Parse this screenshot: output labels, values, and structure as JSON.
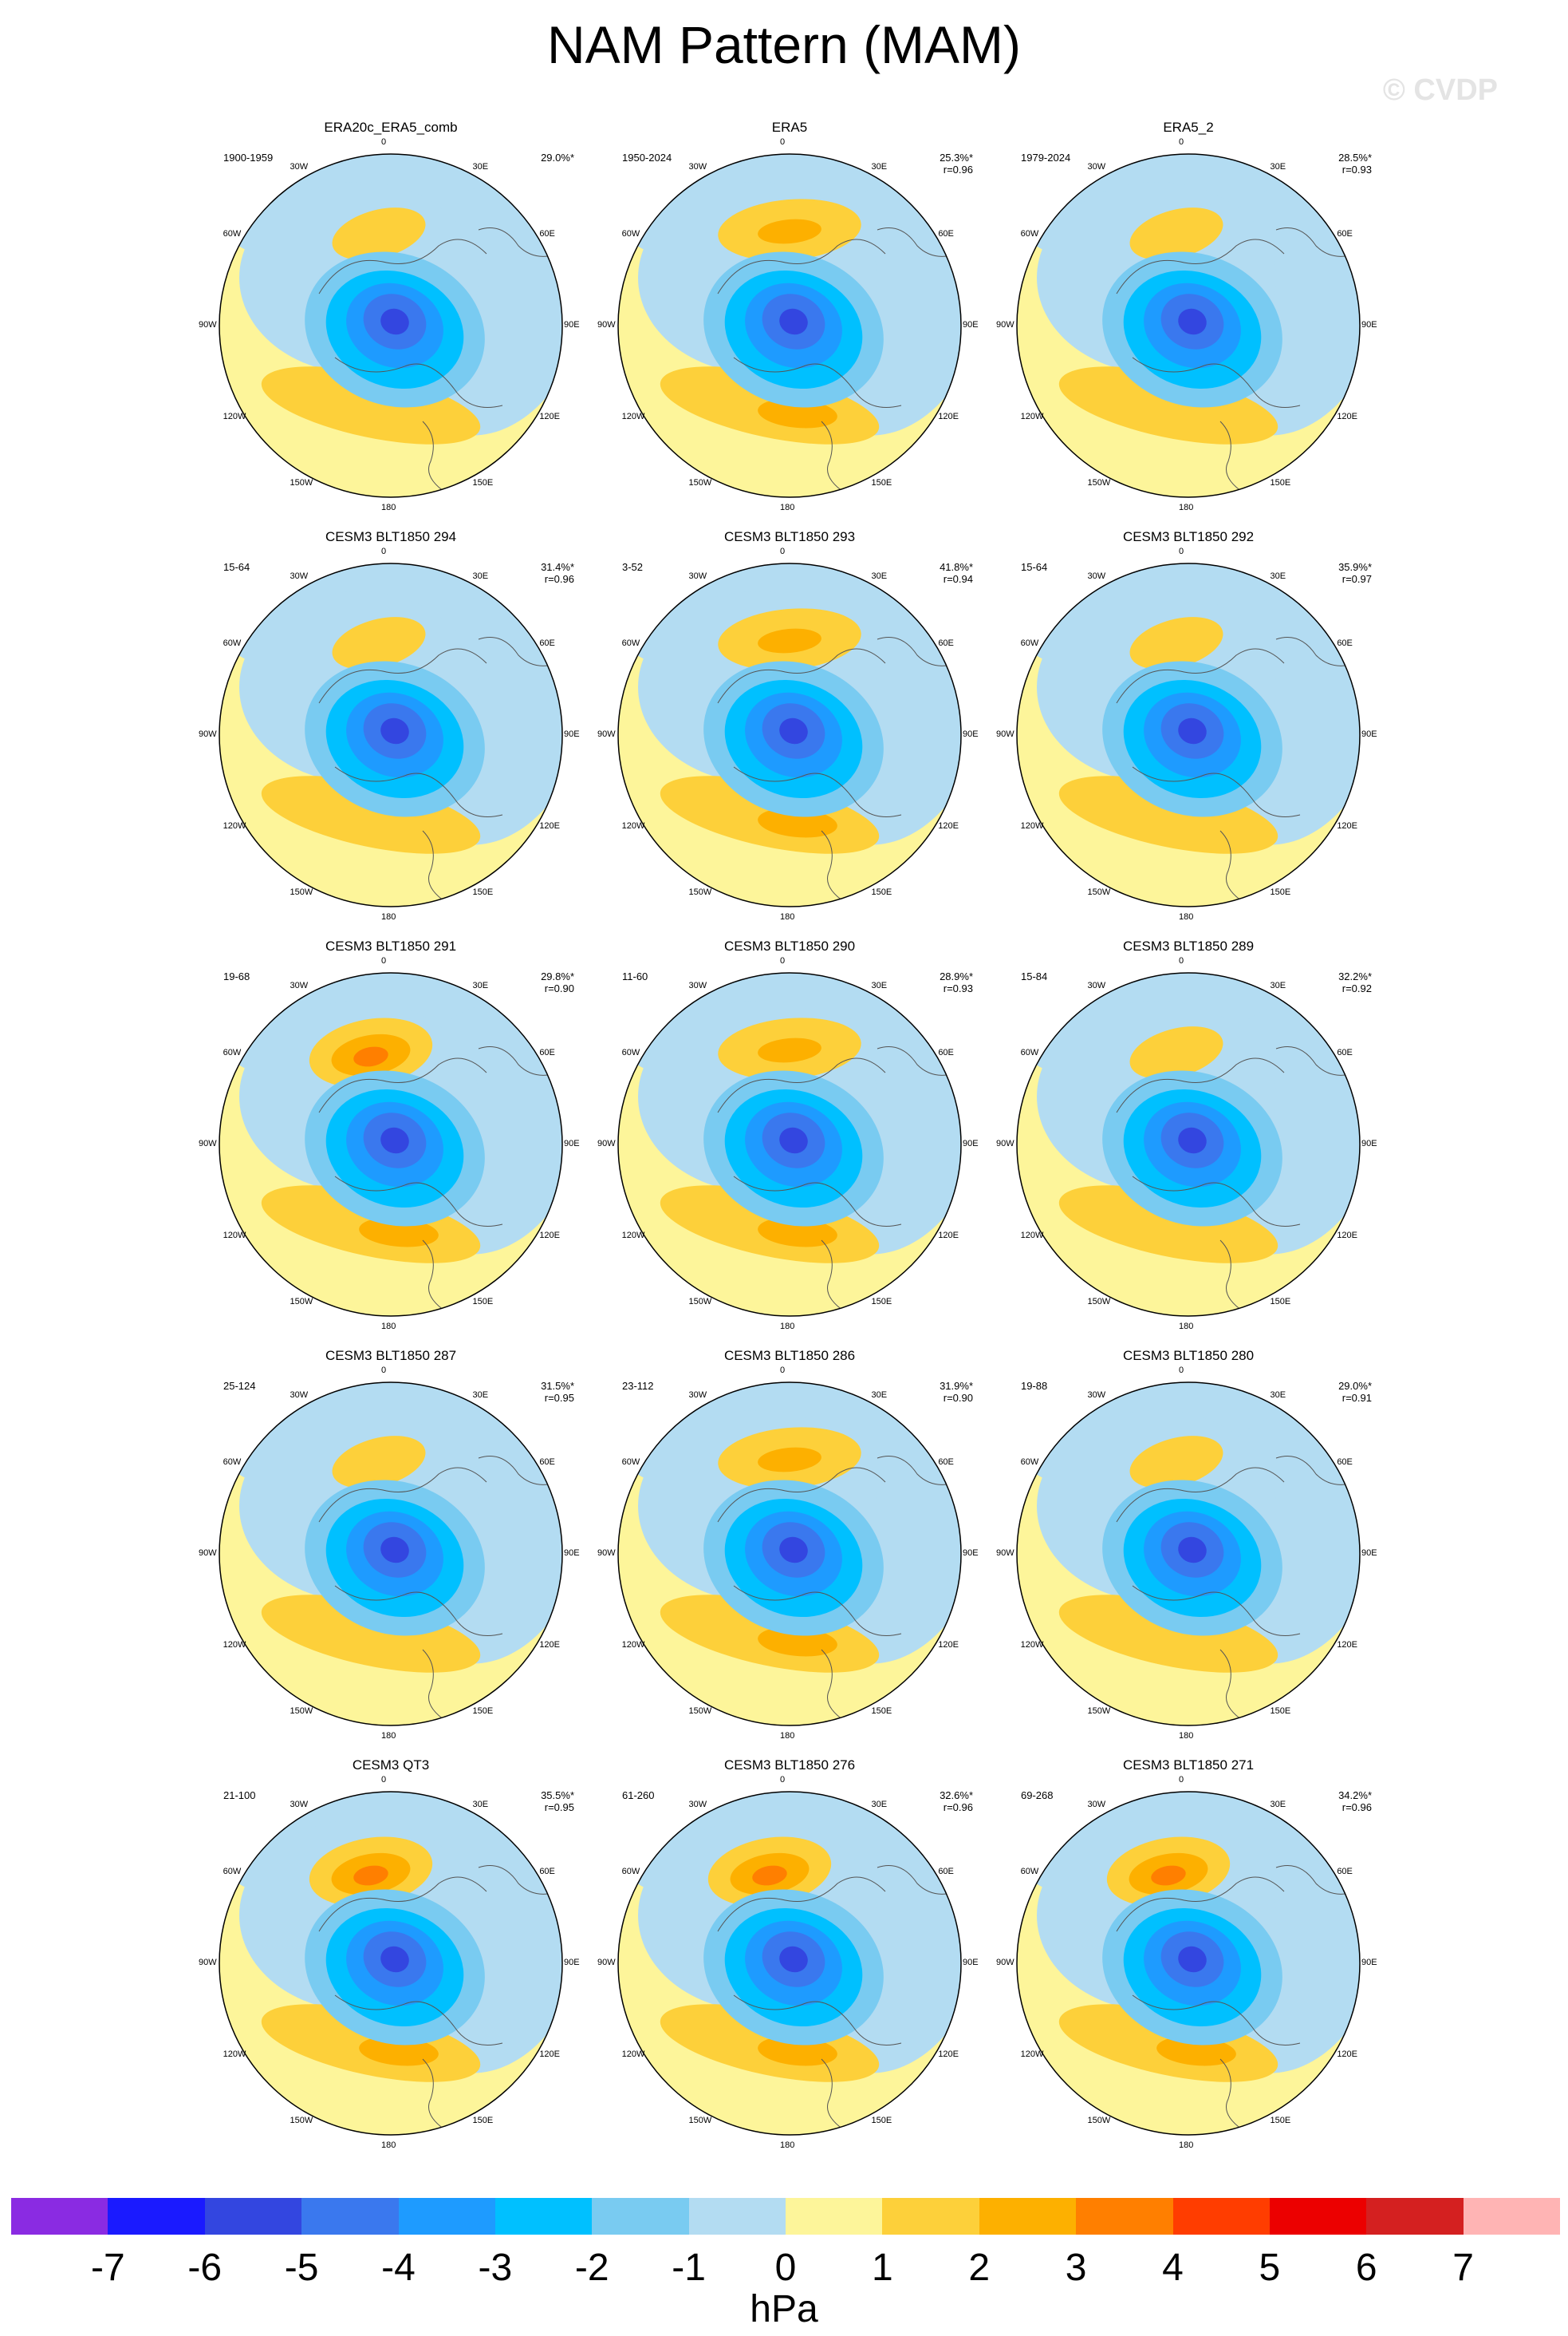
{
  "title": "NAM Pattern (MAM)",
  "watermark": "© CVDP",
  "longitude_labels": [
    "180",
    "150W",
    "150E",
    "120W",
    "120E",
    "90W",
    "90E",
    "60W",
    "60E",
    "30W",
    "30E",
    "0"
  ],
  "panels": [
    {
      "title": "ERA20c_ERA5_comb",
      "period": "1900-1959",
      "pct": "29.0%*",
      "r": "",
      "anomaly": "",
      "high_style": "a"
    },
    {
      "title": "ERA5",
      "period": "1950-2024",
      "pct": "25.3%*",
      "r": "r=0.96",
      "high_style": "b"
    },
    {
      "title": "ERA5_2",
      "period": "1979-2024",
      "pct": "28.5%*",
      "r": "r=0.93",
      "high_style": "a"
    },
    {
      "title": "CESM3 BLT1850 294",
      "period": "15-64",
      "pct": "31.4%*",
      "r": "r=0.96",
      "high_style": "a"
    },
    {
      "title": "CESM3 BLT1850 293",
      "period": "3-52",
      "pct": "41.8%*",
      "r": "r=0.94",
      "high_style": "b"
    },
    {
      "title": "CESM3 BLT1850 292",
      "period": "15-64",
      "pct": "35.9%*",
      "r": "r=0.97",
      "high_style": "a"
    },
    {
      "title": "CESM3 BLT1850 291",
      "period": "19-68",
      "pct": "29.8%*",
      "r": "r=0.90",
      "high_style": "c"
    },
    {
      "title": "CESM3 BLT1850 290",
      "period": "11-60",
      "pct": "28.9%*",
      "r": "r=0.93",
      "high_style": "b"
    },
    {
      "title": "CESM3 BLT1850 289",
      "period": "15-84",
      "pct": "32.2%*",
      "r": "r=0.92",
      "high_style": "a"
    },
    {
      "title": "CESM3 BLT1850 287",
      "period": "25-124",
      "pct": "31.5%*",
      "r": "r=0.95",
      "high_style": "a"
    },
    {
      "title": "CESM3 BLT1850 286",
      "period": "23-112",
      "pct": "31.9%*",
      "r": "r=0.90",
      "high_style": "b"
    },
    {
      "title": "CESM3 BLT1850 280",
      "period": "19-88",
      "pct": "29.0%*",
      "r": "r=0.91",
      "high_style": "a"
    },
    {
      "title": "CESM3 QT3",
      "period": "21-100",
      "pct": "35.5%*",
      "r": "r=0.95",
      "high_style": "c"
    },
    {
      "title": "CESM3 BLT1850 276",
      "period": "61-260",
      "pct": "32.6%*",
      "r": "r=0.96",
      "high_style": "c"
    },
    {
      "title": "CESM3 BLT1850 271",
      "period": "69-268",
      "pct": "34.2%*",
      "r": "r=0.96",
      "high_style": "c"
    }
  ],
  "colorbar": {
    "colors": [
      "#8a2be2",
      "#1a1aff",
      "#3346e0",
      "#3a78ee",
      "#1e9bff",
      "#00c0ff",
      "#79cbf1",
      "#b3dcf2",
      "#fdf59a",
      "#fdd03a",
      "#fdb000",
      "#ff7f00",
      "#ff3d00",
      "#ec0000",
      "#d42020",
      "#ffb4b4"
    ],
    "ticks": [
      "-7",
      "-6",
      "-5",
      "-4",
      "-3",
      "-2",
      "-1",
      "0",
      "1",
      "2",
      "3",
      "4",
      "5",
      "6",
      "7"
    ],
    "units": "hPa"
  }
}
